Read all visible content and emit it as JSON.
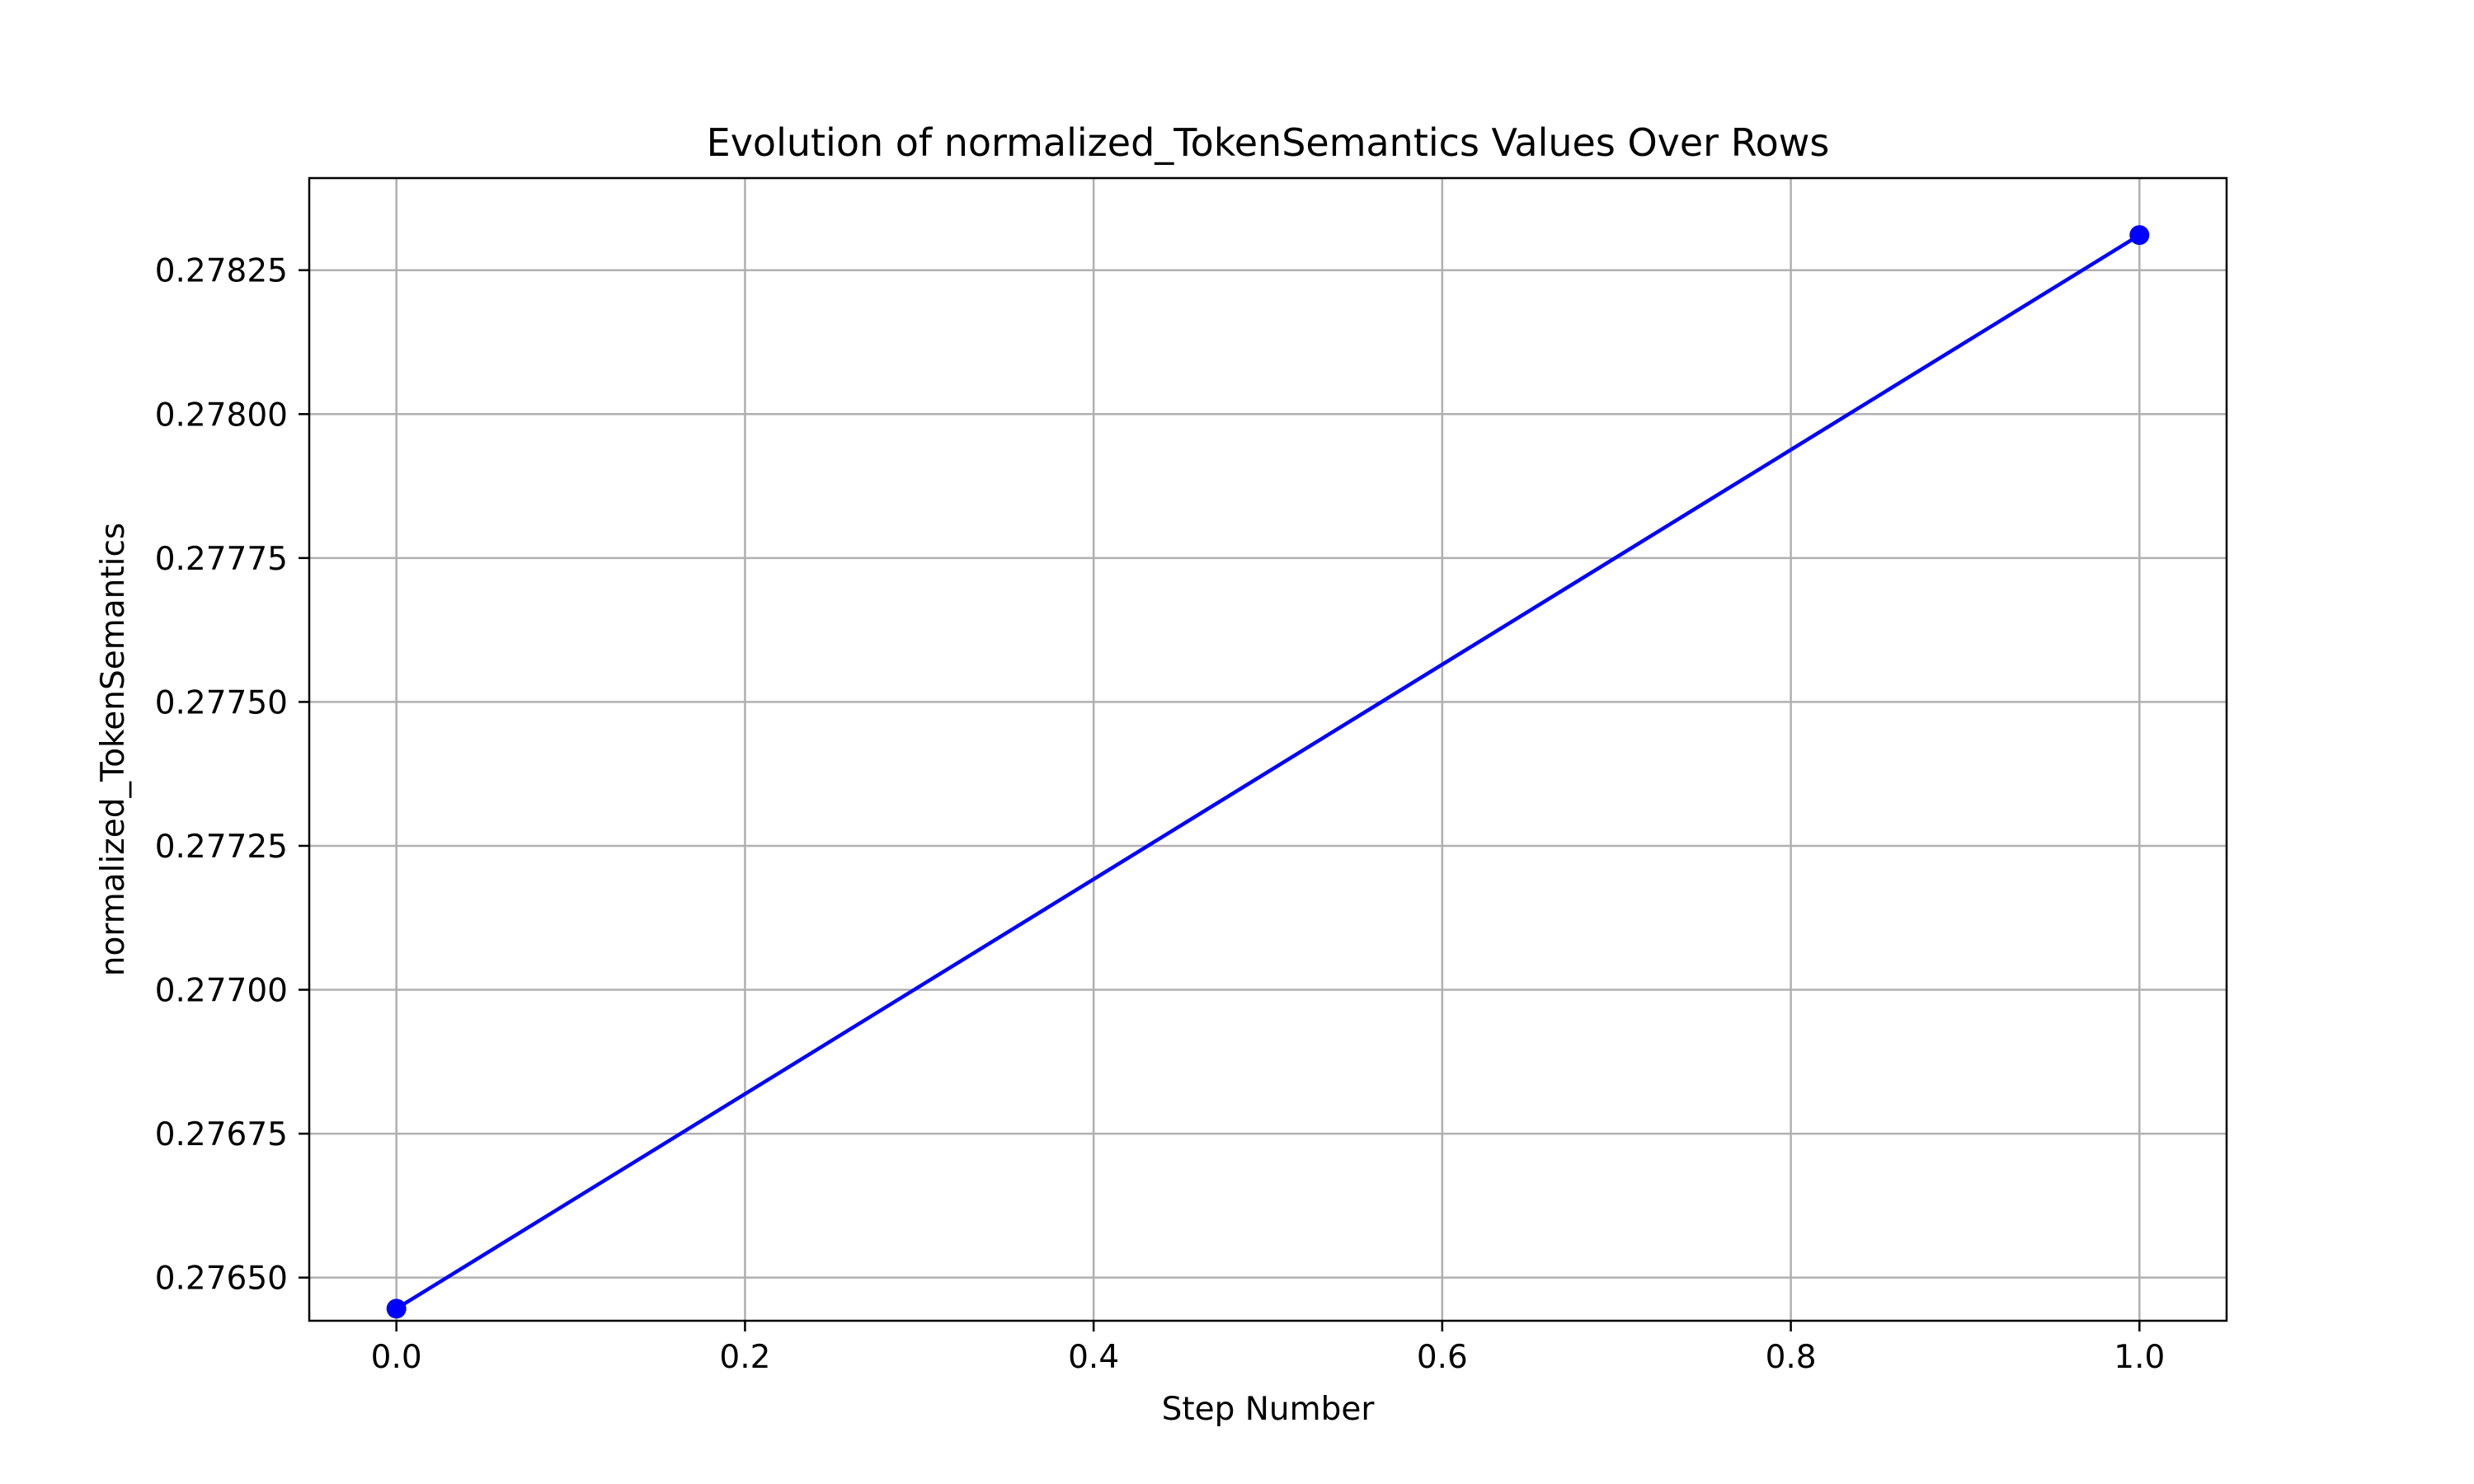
{
  "chart_data": {
    "type": "line",
    "title": "Evolution of normalized_TokenSemantics Values Over Rows",
    "xlabel": "Step Number",
    "ylabel": "normalized_TokenSemantics",
    "xlim": [
      -0.05,
      1.05
    ],
    "ylim": [
      0.276425,
      0.27841
    ],
    "x_ticks": [
      0.0,
      0.2,
      0.4,
      0.6,
      0.8,
      1.0
    ],
    "x_tick_labels": [
      "0.0",
      "0.2",
      "0.4",
      "0.6",
      "0.8",
      "1.0"
    ],
    "y_ticks": [
      0.2765,
      0.27675,
      0.277,
      0.27725,
      0.2775,
      0.27775,
      0.278,
      0.27825
    ],
    "y_tick_labels": [
      "0.27650",
      "0.27675",
      "0.27700",
      "0.27725",
      "0.27750",
      "0.27775",
      "0.27800",
      "0.27825"
    ],
    "grid": true,
    "legend": "none",
    "series": [
      {
        "color": "#0000ff",
        "marker": "circle",
        "x": [
          0.0,
          1.0
        ],
        "y": [
          0.276446,
          0.278311
        ]
      }
    ]
  }
}
